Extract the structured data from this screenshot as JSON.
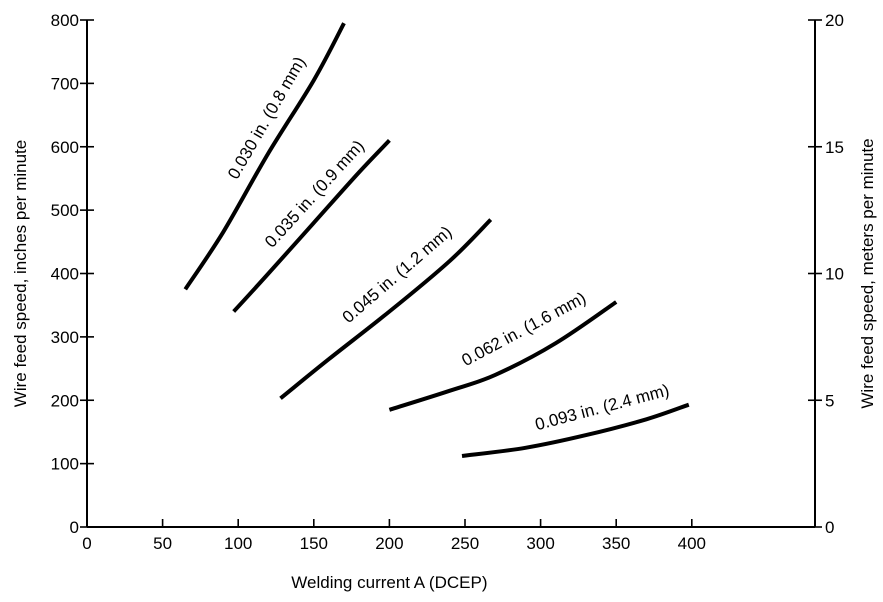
{
  "chart_data": {
    "type": "line",
    "title": "",
    "xlabel": "Welding current A (DCEP)",
    "ylabel": "Wire feed speed, inches per minute",
    "y2label": "Wire feed speed, meters per minute",
    "xlim": [
      0,
      485
    ],
    "ylim": [
      0,
      800
    ],
    "y2lim": [
      0,
      20
    ],
    "xticks": [
      0,
      50,
      100,
      150,
      200,
      250,
      300,
      350,
      400
    ],
    "yticks": [
      0,
      100,
      200,
      300,
      400,
      500,
      600,
      700,
      800
    ],
    "y2ticks": [
      0,
      5,
      10,
      15,
      20
    ],
    "grid": false,
    "series": [
      {
        "name": "0.030 in. (0.8 mm)",
        "x": [
          65,
          90,
          120,
          150,
          170
        ],
        "y": [
          375,
          465,
          590,
          705,
          795
        ]
      },
      {
        "name": "0.035 in. (0.9 mm)",
        "x": [
          97,
          120,
          150,
          180,
          200
        ],
        "y": [
          340,
          400,
          480,
          560,
          610
        ]
      },
      {
        "name": "0.045 in. (1.2 mm)",
        "x": [
          128,
          160,
          200,
          240,
          267
        ],
        "y": [
          203,
          265,
          340,
          420,
          485
        ]
      },
      {
        "name": "0.062 in. (1.6 mm)",
        "x": [
          200,
          240,
          270,
          310,
          350
        ],
        "y": [
          185,
          215,
          240,
          290,
          355
        ]
      },
      {
        "name": "0.093 in. (2.4 mm)",
        "x": [
          248,
          290,
          330,
          370,
          398
        ],
        "y": [
          112,
          125,
          145,
          170,
          193
        ]
      }
    ]
  }
}
